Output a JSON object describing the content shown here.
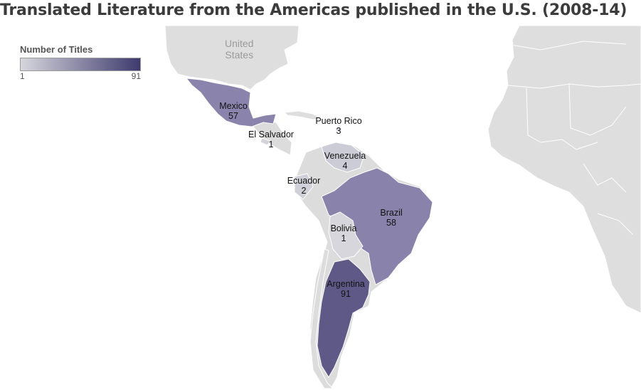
{
  "title": "Translated Literature from the Americas published in the U.S. (2008-14)",
  "legend": {
    "title": "Number of Titles",
    "min_label": "1",
    "max_label": "91",
    "min_value": 1,
    "max_value": 91,
    "color_low": "#d6d6dc",
    "color_high": "#3e3a6e"
  },
  "map_text": {
    "united_states_line1": "United",
    "united_states_line2": "States"
  },
  "regions": [
    {
      "name": "Mexico",
      "value": "57"
    },
    {
      "name": "El Salvador",
      "value": "1"
    },
    {
      "name": "Puerto Rico",
      "value": "3"
    },
    {
      "name": "Venezuela",
      "value": "4"
    },
    {
      "name": "Ecuador",
      "value": "2"
    },
    {
      "name": "Brazil",
      "value": "58"
    },
    {
      "name": "Bolivia",
      "value": "1"
    },
    {
      "name": "Argentina",
      "value": "91"
    }
  ],
  "colors": {
    "land_background": "#dcdcdc",
    "land_border": "#ffffff",
    "ocean": "#ffffff"
  }
}
